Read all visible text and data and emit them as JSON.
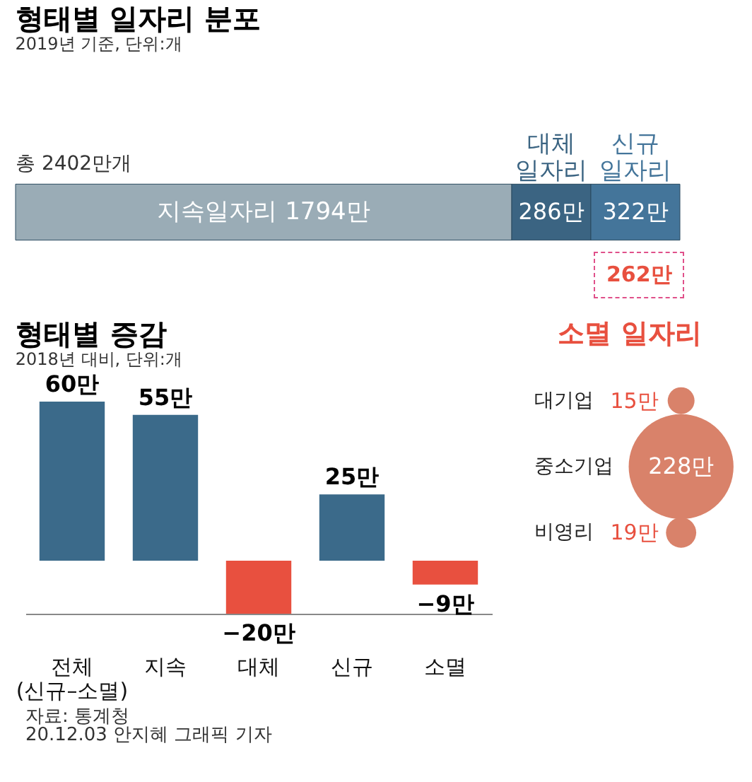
{
  "chart_data": [
    {
      "type": "bar",
      "orientation": "horizontal",
      "stacked": true,
      "title": "형태별 일자리 분포",
      "subtitle": "2019년 기준, 단위:개",
      "annotations": [
        "총 2402만개"
      ],
      "categories": [
        null
      ],
      "series": [
        {
          "name": "지속일자리",
          "color": "#9aacb6",
          "values": [
            1794
          ],
          "value_labels": [
            "1794만"
          ]
        },
        {
          "name": "대체 일자리",
          "color": "#3b6482",
          "values": [
            286
          ],
          "value_labels": [
            "286만"
          ]
        },
        {
          "name": "신규 일자리",
          "color": "#44759a",
          "values": [
            322
          ],
          "value_labels": [
            "322만"
          ]
        }
      ]
    },
    {
      "type": "bar",
      "title": "형태별 증감",
      "subtitle": "2018년 대비, 단위:개",
      "annotations": [
        "자료: 통계청",
        "20.12.03 안지혜 그래픽 기자"
      ],
      "categories": [
        "전체 (신규–소멸)",
        "지속",
        "대체",
        "신규",
        "소멸"
      ],
      "values": [
        60,
        55,
        -20,
        25,
        -9
      ],
      "value_labels": [
        "60만",
        "55만",
        "−20만",
        "25만",
        "−9만"
      ],
      "colors": [
        "#3b6a8a",
        "#3b6a8a",
        "#e8503f",
        "#3b6a8a",
        "#e8503f"
      ]
    },
    {
      "type": "other",
      "title": "소멸 일자리",
      "annotations": [
        "262만"
      ],
      "categories": [
        "대기업",
        "중소기업",
        "비영리"
      ],
      "values": [
        15,
        228,
        19
      ],
      "value_labels": [
        "15만",
        "228만",
        "19만"
      ],
      "colors": [
        "#d9826a",
        "#d9826a",
        "#d9826a"
      ]
    }
  ]
}
